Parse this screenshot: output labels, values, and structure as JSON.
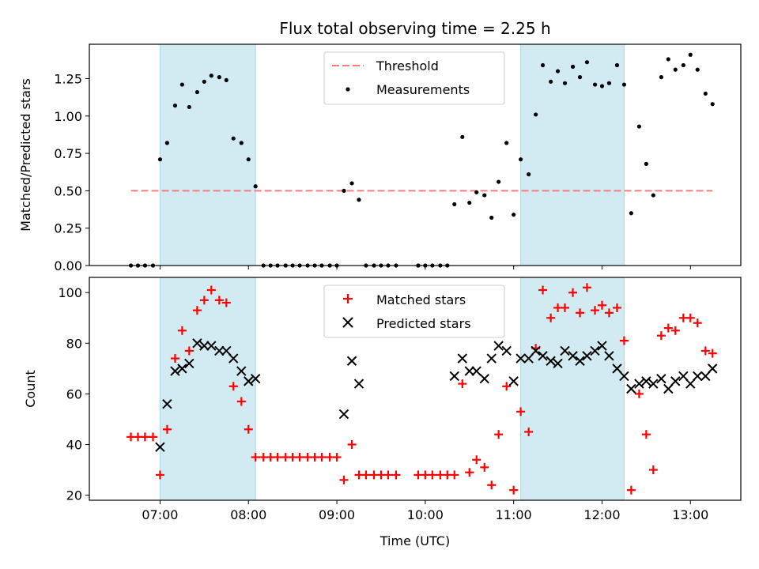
{
  "chart_data": {
    "title": "Flux total observing time = 2.25 h",
    "x_axis": {
      "label": "Time (UTC)",
      "unit": "hours UTC",
      "range": [
        6.2,
        13.57
      ],
      "ticks": [
        {
          "value": 7,
          "label": "07:00"
        },
        {
          "value": 8,
          "label": "08:00"
        },
        {
          "value": 9,
          "label": "09:00"
        },
        {
          "value": 10,
          "label": "10:00"
        },
        {
          "value": 11,
          "label": "11:00"
        },
        {
          "value": 12,
          "label": "12:00"
        },
        {
          "value": 13,
          "label": "13:00"
        }
      ]
    },
    "shaded_intervals": [
      [
        7.0,
        8.08
      ],
      [
        11.08,
        12.25
      ]
    ],
    "shade_color": "#add8e6",
    "panels": [
      {
        "type": "scatter",
        "ylabel": "Matched/Predicted stars",
        "ylim": [
          0,
          1.48
        ],
        "yticks": [
          {
            "value": 0.0,
            "label": "0.00"
          },
          {
            "value": 0.25,
            "label": "0.25"
          },
          {
            "value": 0.5,
            "label": "0.50"
          },
          {
            "value": 0.75,
            "label": "0.75"
          },
          {
            "value": 1.0,
            "label": "1.00"
          },
          {
            "value": 1.25,
            "label": "1.25"
          }
        ],
        "legend_position": "top-center",
        "threshold": {
          "name": "Threshold",
          "y": 0.5,
          "x_range": [
            6.67,
            13.25
          ],
          "color": "#f08080"
        },
        "series": [
          {
            "name": "Measurements",
            "marker": "dot",
            "color": "#000000",
            "x": [
              6.67,
              6.75,
              6.83,
              6.92,
              7.0,
              7.08,
              7.17,
              7.25,
              7.33,
              7.42,
              7.5,
              7.58,
              7.67,
              7.75,
              7.83,
              7.92,
              8.0,
              8.08,
              8.17,
              8.25,
              8.33,
              8.42,
              8.5,
              8.58,
              8.67,
              8.75,
              8.83,
              8.92,
              9.0,
              9.08,
              9.17,
              9.25,
              9.33,
              9.42,
              9.5,
              9.58,
              9.67,
              9.92,
              10.0,
              10.08,
              10.17,
              10.25,
              10.33,
              10.42,
              10.5,
              10.58,
              10.67,
              10.75,
              10.83,
              10.92,
              11.0,
              11.08,
              11.17,
              11.25,
              11.33,
              11.42,
              11.5,
              11.58,
              11.67,
              11.75,
              11.83,
              11.92,
              12.0,
              12.08,
              12.17,
              12.25,
              12.33,
              12.42,
              12.5,
              12.58,
              12.67,
              12.75,
              12.83,
              12.92,
              13.0,
              13.08,
              13.17,
              13.25
            ],
            "y": [
              0.0,
              0.0,
              0.0,
              0.0,
              0.71,
              0.82,
              1.07,
              1.21,
              1.06,
              1.16,
              1.23,
              1.27,
              1.26,
              1.24,
              0.85,
              0.82,
              0.71,
              0.53,
              0.0,
              0.0,
              0.0,
              0.0,
              0.0,
              0.0,
              0.0,
              0.0,
              0.0,
              0.0,
              0.0,
              0.5,
              0.55,
              0.44,
              0.0,
              0.0,
              0.0,
              0.0,
              0.0,
              0.0,
              0.0,
              0.0,
              0.0,
              0.0,
              0.41,
              0.86,
              0.42,
              0.49,
              0.47,
              0.32,
              0.56,
              0.82,
              0.34,
              0.71,
              0.61,
              1.01,
              1.34,
              1.23,
              1.3,
              1.22,
              1.33,
              1.26,
              1.36,
              1.21,
              1.2,
              1.22,
              1.34,
              1.21,
              0.35,
              0.93,
              0.68,
              0.47,
              1.26,
              1.38,
              1.31,
              1.34,
              1.41,
              1.31,
              1.15,
              1.08
            ]
          }
        ]
      },
      {
        "type": "scatter",
        "ylabel": "Count",
        "ylim": [
          18,
          106
        ],
        "yticks": [
          {
            "value": 20,
            "label": "20"
          },
          {
            "value": 40,
            "label": "40"
          },
          {
            "value": 60,
            "label": "60"
          },
          {
            "value": 80,
            "label": "80"
          },
          {
            "value": 100,
            "label": "100"
          }
        ],
        "legend_position": "top-center",
        "series": [
          {
            "name": "Matched stars",
            "marker": "plus",
            "color": "#ff0000",
            "x": [
              6.67,
              6.75,
              6.83,
              6.92,
              7.0,
              7.08,
              7.17,
              7.25,
              7.33,
              7.42,
              7.5,
              7.58,
              7.67,
              7.75,
              7.83,
              7.92,
              8.0,
              8.08,
              8.17,
              8.25,
              8.33,
              8.42,
              8.5,
              8.58,
              8.67,
              8.75,
              8.83,
              8.92,
              9.0,
              9.08,
              9.17,
              9.25,
              9.33,
              9.42,
              9.5,
              9.58,
              9.67,
              9.92,
              10.0,
              10.08,
              10.17,
              10.25,
              10.33,
              10.42,
              10.5,
              10.58,
              10.67,
              10.75,
              10.83,
              10.92,
              11.0,
              11.08,
              11.17,
              11.25,
              11.33,
              11.42,
              11.5,
              11.58,
              11.67,
              11.75,
              11.83,
              11.92,
              12.0,
              12.08,
              12.17,
              12.25,
              12.33,
              12.42,
              12.5,
              12.58,
              12.67,
              12.75,
              12.83,
              12.92,
              13.0,
              13.08,
              13.17,
              13.25
            ],
            "y": [
              43,
              43,
              43,
              43,
              28,
              46,
              74,
              85,
              77,
              93,
              97,
              101,
              97,
              96,
              63,
              57,
              46,
              35,
              35,
              35,
              35,
              35,
              35,
              35,
              35,
              35,
              35,
              35,
              35,
              26,
              40,
              28,
              28,
              28,
              28,
              28,
              28,
              28,
              28,
              28,
              28,
              28,
              28,
              64,
              29,
              34,
              31,
              24,
              44,
              63,
              22,
              53,
              45,
              78,
              101,
              90,
              94,
              94,
              100,
              92,
              102,
              93,
              95,
              92,
              94,
              81,
              22,
              60,
              44,
              30,
              83,
              86,
              85,
              90,
              90,
              88,
              77,
              76
            ]
          },
          {
            "name": "Predicted stars",
            "marker": "x",
            "color": "#000000",
            "x": [
              7.0,
              7.08,
              7.17,
              7.25,
              7.33,
              7.42,
              7.5,
              7.58,
              7.67,
              7.75,
              7.83,
              7.92,
              8.0,
              8.08,
              9.08,
              9.17,
              9.25,
              10.33,
              10.42,
              10.5,
              10.58,
              10.67,
              10.75,
              10.83,
              10.92,
              11.0,
              11.08,
              11.17,
              11.25,
              11.33,
              11.42,
              11.5,
              11.58,
              11.67,
              11.75,
              11.83,
              11.92,
              12.0,
              12.08,
              12.17,
              12.25,
              12.33,
              12.42,
              12.5,
              12.58,
              12.67,
              12.75,
              12.83,
              12.92,
              13.0,
              13.08,
              13.17,
              13.25
            ],
            "y": [
              39,
              56,
              69,
              70,
              72,
              80,
              79,
              79,
              77,
              77,
              74,
              69,
              65,
              66,
              52,
              73,
              64,
              67,
              74,
              69,
              69,
              66,
              74,
              79,
              77,
              65,
              74,
              74,
              77,
              75,
              73,
              72,
              77,
              75,
              73,
              75,
              77,
              79,
              75,
              70,
              67,
              62,
              64,
              65,
              64,
              66,
              62,
              65,
              67,
              64,
              67,
              67,
              70
            ]
          }
        ]
      }
    ]
  }
}
